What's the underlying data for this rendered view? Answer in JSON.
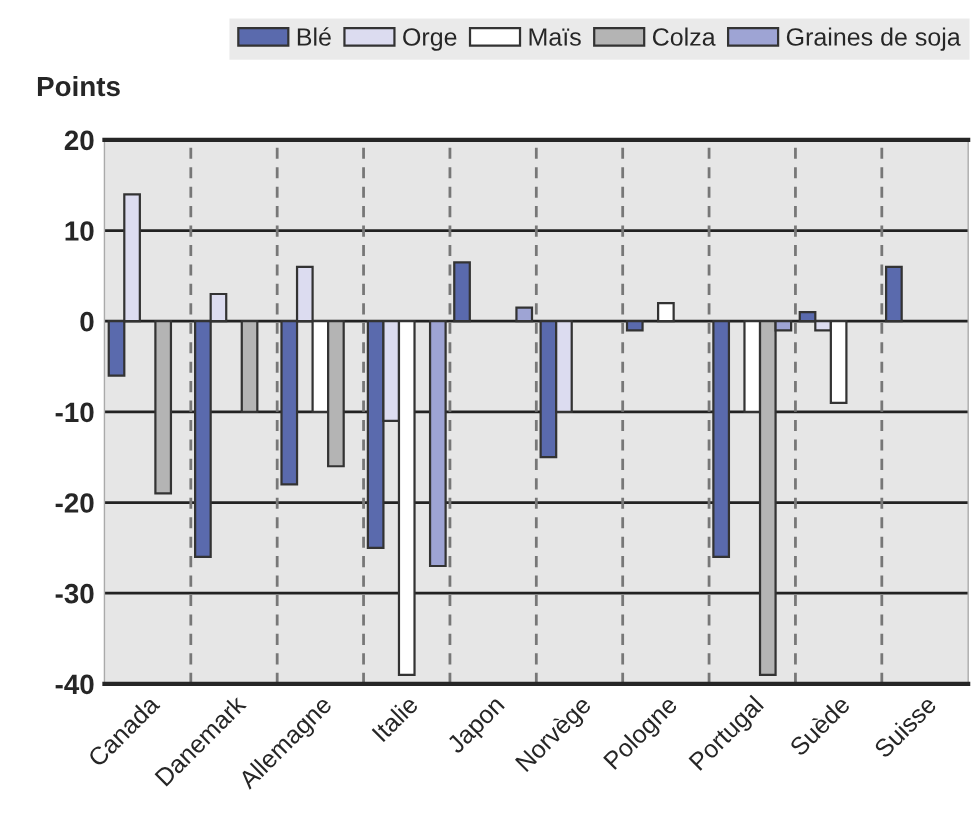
{
  "chart_data": {
    "type": "bar",
    "ylabel": "Points",
    "categories": [
      "Canada",
      "Danemark",
      "Allemagne",
      "Italie",
      "Japon",
      "Norvège",
      "Pologne",
      "Portugal",
      "Suède",
      "Suisse"
    ],
    "series": [
      {
        "name": "Blé",
        "color": "#5a6aad",
        "values": [
          -6,
          -26,
          -18,
          -25,
          6.5,
          -15,
          -1,
          -26,
          1,
          6
        ]
      },
      {
        "name": "Orge",
        "color": "#dcdcf0",
        "values": [
          14,
          3,
          6,
          -11,
          null,
          -10,
          null,
          null,
          -1,
          null
        ]
      },
      {
        "name": "Maïs",
        "color": "#ffffff",
        "values": [
          null,
          null,
          -10,
          -39,
          null,
          null,
          2,
          -10,
          -9,
          null
        ]
      },
      {
        "name": "Colza",
        "color": "#b4b4b4",
        "values": [
          -19,
          -10,
          -16,
          null,
          null,
          null,
          null,
          -39,
          null,
          null
        ]
      },
      {
        "name": "Graines de soja",
        "color": "#9ea4d4",
        "values": [
          null,
          null,
          null,
          -27,
          1.5,
          null,
          null,
          -1,
          null,
          null
        ]
      }
    ],
    "ylim": [
      -40,
      20
    ],
    "yticks": [
      -40,
      -30,
      -20,
      -10,
      0,
      10,
      20
    ],
    "grid": true,
    "legend": "top"
  }
}
